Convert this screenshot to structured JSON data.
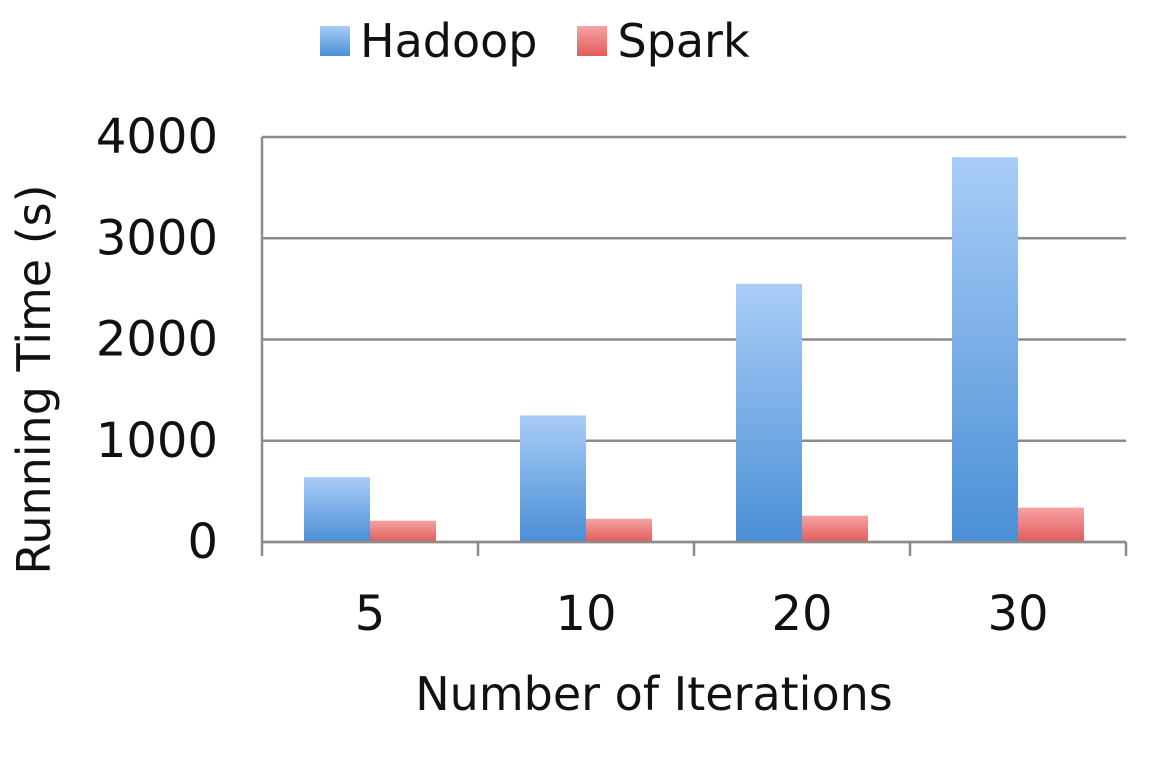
{
  "chart_data": {
    "type": "bar",
    "title": "",
    "xlabel": "Number of Iterations",
    "ylabel": "Running Time (s)",
    "categories": [
      "5",
      "10",
      "20",
      "30"
    ],
    "series": [
      {
        "name": "Hadoop",
        "values": [
          640,
          1250,
          2550,
          3800
        ],
        "color": "#5b9bd5"
      },
      {
        "name": "Spark",
        "values": [
          210,
          230,
          260,
          340
        ],
        "color": "#e06666"
      }
    ],
    "ylim": [
      0,
      4000
    ],
    "yticks": [
      "0",
      "1000",
      "2000",
      "3000",
      "4000"
    ],
    "grid": true,
    "legend_position": "top"
  }
}
